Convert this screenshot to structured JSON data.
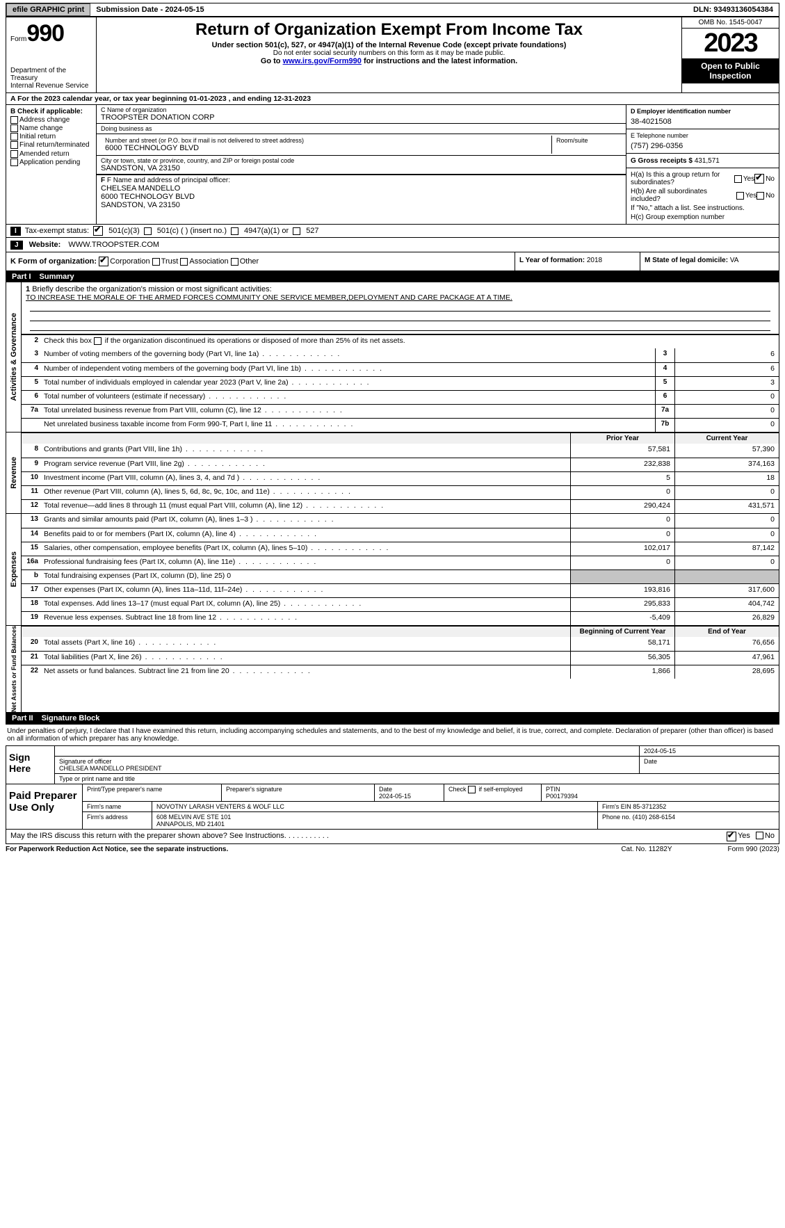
{
  "topbar": {
    "efile": "efile GRAPHIC print",
    "submission": "Submission Date - 2024-05-15",
    "dln": "DLN: 93493136054384"
  },
  "header": {
    "form_label": "Form",
    "form_num": "990",
    "dept": "Department of the Treasury\nInternal Revenue Service",
    "title": "Return of Organization Exempt From Income Tax",
    "sub1": "Under section 501(c), 527, or 4947(a)(1) of the Internal Revenue Code (except private foundations)",
    "sub2": "Do not enter social security numbers on this form as it may be made public.",
    "sub3_pre": "Go to ",
    "sub3_link": "www.irs.gov/Form990",
    "sub3_post": " for instructions and the latest information.",
    "omb": "OMB No. 1545-0047",
    "year": "2023",
    "open": "Open to Public Inspection"
  },
  "row_a": "A For the 2023 calendar year, or tax year beginning 01-01-2023    , and ending 12-31-2023",
  "col_b": {
    "hdr": "B Check if applicable:",
    "items": [
      "Address change",
      "Name change",
      "Initial return",
      "Final return/terminated",
      "Amended return",
      "Application pending"
    ]
  },
  "box_c": {
    "lbl_name": "C Name of organization",
    "name": "TROOPSTER DONATION CORP",
    "lbl_dba": "Doing business as",
    "dba": "",
    "lbl_addr": "Number and street (or P.O. box if mail is not delivered to street address)",
    "addr": "6000 TECHNOLOGY BLVD",
    "lbl_room": "Room/suite",
    "room": "",
    "lbl_city": "City or town, state or province, country, and ZIP or foreign postal code",
    "city": "SANDSTON, VA  23150"
  },
  "box_d": {
    "lbl": "D Employer identification number",
    "val": "38-4021508"
  },
  "box_e": {
    "lbl": "E Telephone number",
    "val": "(757) 296-0356"
  },
  "box_g": {
    "lbl": "G Gross receipts $",
    "val": "431,571"
  },
  "box_f": {
    "lbl": "F Name and address of principal officer:",
    "name": "CHELSEA MANDELLO",
    "addr1": "6000 TECHNOLOGY BLVD",
    "addr2": "SANDSTON, VA  23150"
  },
  "box_h": {
    "ha_q": "H(a) Is this a group return for subordinates?",
    "hb_q": "H(b) Are all subordinates included?",
    "hb_note": "If \"No,\" attach a list. See instructions.",
    "hc_q": "H(c) Group exemption number",
    "yes": "Yes",
    "no": "No"
  },
  "row_i": {
    "tag": "I",
    "lbl": "Tax-exempt status:",
    "o1": "501(c)(3)",
    "o2": "501(c) (  ) (insert no.)",
    "o3": "4947(a)(1) or",
    "o4": "527"
  },
  "row_j": {
    "tag": "J",
    "lbl": "Website:",
    "val": "WWW.TROOPSTER.COM"
  },
  "row_k": {
    "lbl": "K Form of organization:",
    "o1": "Corporation",
    "o2": "Trust",
    "o3": "Association",
    "o4": "Other",
    "l_lbl": "L Year of formation:",
    "l_val": "2018",
    "m_lbl": "M State of legal domicile:",
    "m_val": "VA"
  },
  "part1": {
    "num": "Part I",
    "title": "Summary"
  },
  "vtabs": {
    "gov": "Activities & Governance",
    "rev": "Revenue",
    "exp": "Expenses",
    "net": "Net Assets or\nFund Balances"
  },
  "mission": {
    "lbl": "1 Briefly describe the organization's mission or most significant activities:",
    "txt": "TO INCREASE THE MORALE OF THE ARMED FORCES COMMUNITY ONE SERVICE MEMBER,DEPLOYMENT AND CARE PACKAGE AT A TIME."
  },
  "line2": "Check this box       if the organization discontinued its operations or disposed of more than 25% of its net assets.",
  "gov_lines": [
    {
      "n": "3",
      "t": "Number of voting members of the governing body (Part VI, line 1a)",
      "bn": "3",
      "v": "6"
    },
    {
      "n": "4",
      "t": "Number of independent voting members of the governing body (Part VI, line 1b)",
      "bn": "4",
      "v": "6"
    },
    {
      "n": "5",
      "t": "Total number of individuals employed in calendar year 2023 (Part V, line 2a)",
      "bn": "5",
      "v": "3"
    },
    {
      "n": "6",
      "t": "Total number of volunteers (estimate if necessary)",
      "bn": "6",
      "v": "0"
    },
    {
      "n": "7a",
      "t": "Total unrelated business revenue from Part VIII, column (C), line 12",
      "bn": "7a",
      "v": "0"
    },
    {
      "n": "",
      "t": "Net unrelated business taxable income from Form 990-T, Part I, line 11",
      "bn": "7b",
      "v": "0"
    }
  ],
  "rev_hdr": {
    "py": "Prior Year",
    "cy": "Current Year"
  },
  "rev_lines": [
    {
      "n": "8",
      "t": "Contributions and grants (Part VIII, line 1h)",
      "py": "57,581",
      "cy": "57,390"
    },
    {
      "n": "9",
      "t": "Program service revenue (Part VIII, line 2g)",
      "py": "232,838",
      "cy": "374,163"
    },
    {
      "n": "10",
      "t": "Investment income (Part VIII, column (A), lines 3, 4, and 7d )",
      "py": "5",
      "cy": "18"
    },
    {
      "n": "11",
      "t": "Other revenue (Part VIII, column (A), lines 5, 6d, 8c, 9c, 10c, and 11e)",
      "py": "0",
      "cy": "0"
    },
    {
      "n": "12",
      "t": "Total revenue—add lines 8 through 11 (must equal Part VIII, column (A), line 12)",
      "py": "290,424",
      "cy": "431,571"
    }
  ],
  "exp_lines": [
    {
      "n": "13",
      "t": "Grants and similar amounts paid (Part IX, column (A), lines 1–3 )",
      "py": "0",
      "cy": "0"
    },
    {
      "n": "14",
      "t": "Benefits paid to or for members (Part IX, column (A), line 4)",
      "py": "0",
      "cy": "0"
    },
    {
      "n": "15",
      "t": "Salaries, other compensation, employee benefits (Part IX, column (A), lines 5–10)",
      "py": "102,017",
      "cy": "87,142"
    },
    {
      "n": "16a",
      "t": "Professional fundraising fees (Part IX, column (A), line 11e)",
      "py": "0",
      "cy": "0"
    },
    {
      "n": "b",
      "t": "Total fundraising expenses (Part IX, column (D), line 25) 0",
      "py": "",
      "cy": "",
      "grey": true
    },
    {
      "n": "17",
      "t": "Other expenses (Part IX, column (A), lines 11a–11d, 11f–24e)",
      "py": "193,816",
      "cy": "317,600"
    },
    {
      "n": "18",
      "t": "Total expenses. Add lines 13–17 (must equal Part IX, column (A), line 25)",
      "py": "295,833",
      "cy": "404,742"
    },
    {
      "n": "19",
      "t": "Revenue less expenses. Subtract line 18 from line 12",
      "py": "-5,409",
      "cy": "26,829"
    }
  ],
  "net_hdr": {
    "b": "Beginning of Current Year",
    "e": "End of Year"
  },
  "net_lines": [
    {
      "n": "20",
      "t": "Total assets (Part X, line 16)",
      "py": "58,171",
      "cy": "76,656"
    },
    {
      "n": "21",
      "t": "Total liabilities (Part X, line 26)",
      "py": "56,305",
      "cy": "47,961"
    },
    {
      "n": "22",
      "t": "Net assets or fund balances. Subtract line 21 from line 20",
      "py": "1,866",
      "cy": "28,695"
    }
  ],
  "part2": {
    "num": "Part II",
    "title": "Signature Block"
  },
  "sig": {
    "decl": "Under penalties of perjury, I declare that I have examined this return, including accompanying schedules and statements, and to the best of my knowledge and belief, it is true, correct, and complete. Declaration of preparer (other than officer) is based on all information of which preparer has any knowledge.",
    "sign_here": "Sign Here",
    "sig_officer": "Signature of officer",
    "officer": "CHELSEA MANDELLO PRESIDENT",
    "type_name": "Type or print name and title",
    "date_lbl": "Date",
    "date": "2024-05-15",
    "paid": "Paid Preparer Use Only",
    "prep_name_lbl": "Print/Type preparer's name",
    "prep_sig_lbl": "Preparer's signature",
    "prep_date": "2024-05-15",
    "check_self": "Check       if self-employed",
    "ptin_lbl": "PTIN",
    "ptin": "P00179394",
    "firm_name_lbl": "Firm's name",
    "firm_name": "NOVOTNY LARASH VENTERS & WOLF LLC",
    "firm_ein_lbl": "Firm's EIN",
    "firm_ein": "85-3712352",
    "firm_addr_lbl": "Firm's address",
    "firm_addr1": "608 MELVIN AVE STE 101",
    "firm_addr2": "ANNAPOLIS, MD  21401",
    "phone_lbl": "Phone no.",
    "phone": "(410) 268-6154",
    "discuss": "May the IRS discuss this return with the preparer shown above? See Instructions."
  },
  "footer": {
    "l": "For Paperwork Reduction Act Notice, see the separate instructions.",
    "m": "Cat. No. 11282Y",
    "r": "Form 990 (2023)"
  }
}
